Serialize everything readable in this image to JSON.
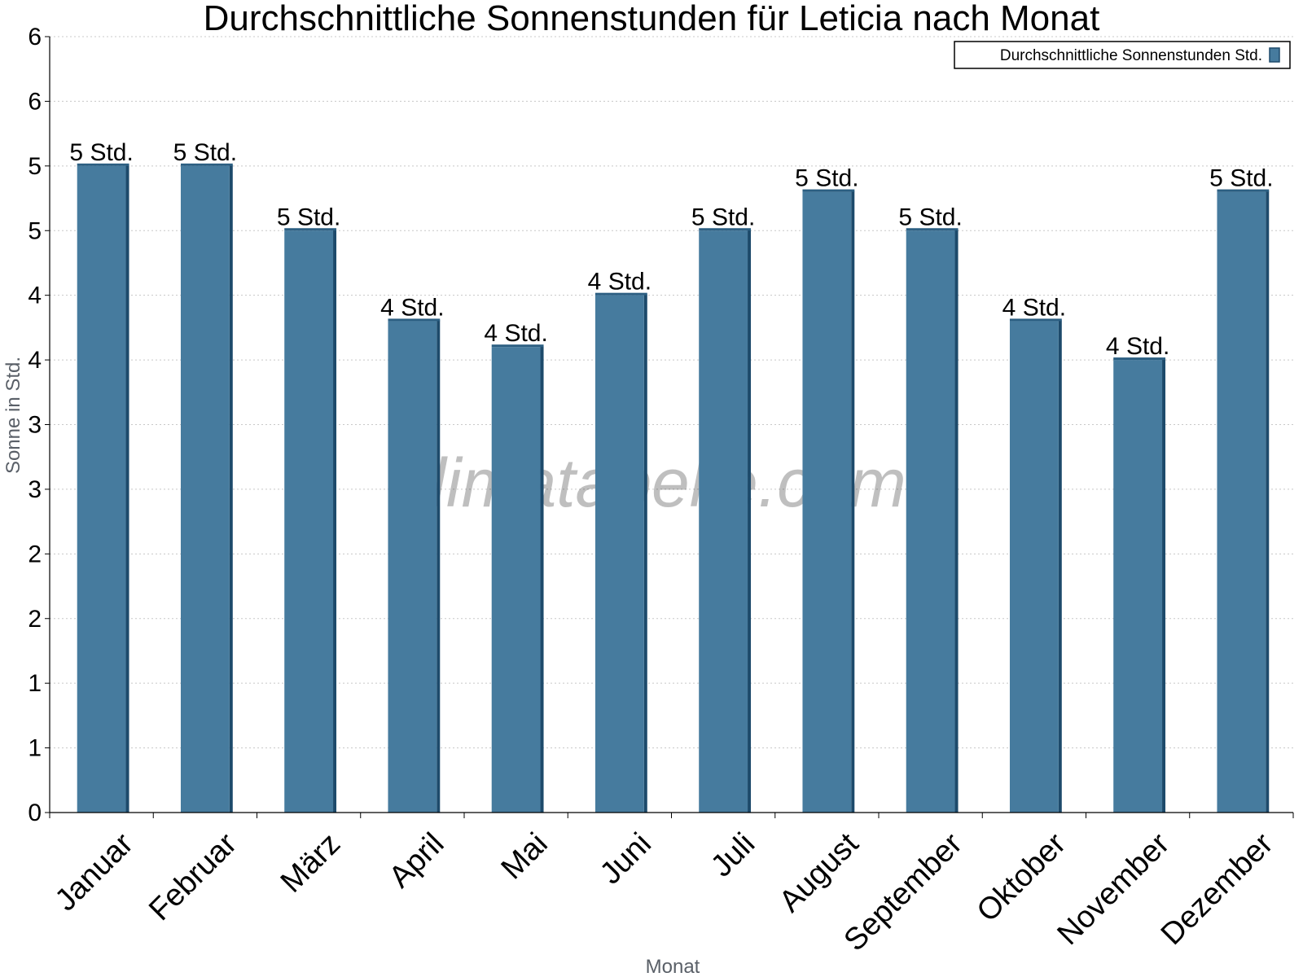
{
  "watermark": "klimatabelle.com",
  "colors": {
    "bar_front": "#467b9e",
    "bar_side": "#1d4a6b",
    "bar_top": "#2c5f82",
    "grid": "#c8c8c8",
    "axis": "#000000"
  },
  "chart_data": {
    "type": "bar",
    "title": "Durchschnittliche Sonnenstunden für Leticia nach Monat",
    "xlabel": "Monat",
    "ylabel": "Sonne in Std.",
    "ylim": [
      0,
      6
    ],
    "y_ticks": [
      {
        "value": 0,
        "label": "0"
      },
      {
        "value": 0.5,
        "label": "1"
      },
      {
        "value": 1,
        "label": "1"
      },
      {
        "value": 1.5,
        "label": "2"
      },
      {
        "value": 2,
        "label": "2"
      },
      {
        "value": 2.5,
        "label": "3"
      },
      {
        "value": 3,
        "label": "3"
      },
      {
        "value": 3.5,
        "label": "4"
      },
      {
        "value": 4,
        "label": "4"
      },
      {
        "value": 4.5,
        "label": "5"
      },
      {
        "value": 5,
        "label": "5"
      },
      {
        "value": 5.5,
        "label": "6"
      }
    ],
    "categories": [
      "Januar",
      "Februar",
      "März",
      "April",
      "Mai",
      "Juni",
      "Juli",
      "August",
      "September",
      "Oktober",
      "November",
      "Dezember"
    ],
    "series": [
      {
        "name": "Durchschnittliche Sonnenstunden Std.",
        "values": [
          5.0,
          5.0,
          4.5,
          3.8,
          3.6,
          4.0,
          4.5,
          4.8,
          4.5,
          3.8,
          3.5,
          4.8
        ],
        "labels": [
          "5 Std.",
          "5 Std.",
          "5 Std.",
          "4 Std.",
          "4 Std.",
          "4 Std.",
          "5 Std.",
          "5 Std.",
          "5 Std.",
          "4 Std.",
          "4 Std.",
          "5 Std."
        ]
      }
    ],
    "grid": true,
    "legend": "top-right"
  }
}
